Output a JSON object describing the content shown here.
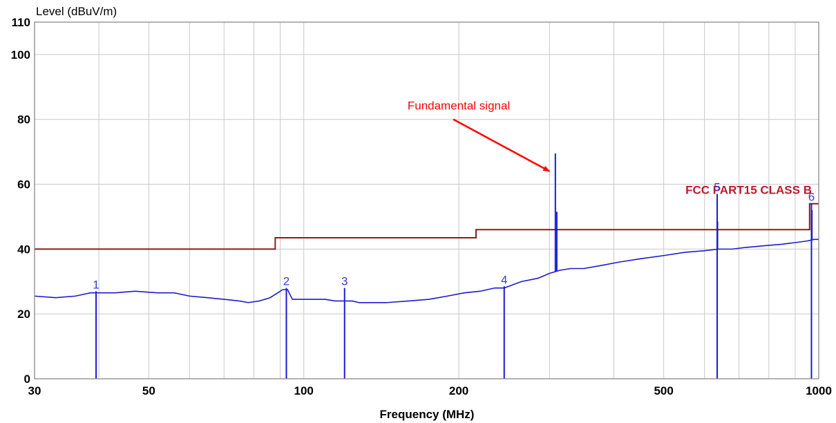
{
  "chart_data": {
    "type": "line",
    "ylabel": "Level (dBuV/m)",
    "xlabel": "Frequency (MHz)",
    "x_scale": "log",
    "xlim": [
      30,
      1000
    ],
    "ylim": [
      0,
      110
    ],
    "x_ticks": [
      30,
      50,
      100,
      200,
      500,
      1000
    ],
    "x_tick_labels": [
      "30",
      "50",
      "100",
      "200",
      "500",
      "1000"
    ],
    "x_minor_gridlines": [
      40,
      60,
      70,
      80,
      90,
      300,
      400,
      600,
      700,
      800,
      900
    ],
    "y_ticks": [
      0,
      20,
      40,
      60,
      80,
      100,
      110
    ],
    "y_tick_labels": [
      "0",
      "20",
      "40",
      "60",
      "80",
      "100",
      "110"
    ],
    "grid": true,
    "colors": {
      "trace": "#1a1ad0",
      "limit": "#8b1a1a",
      "annotation": "#ff0000",
      "marker_label": "#3a3acc"
    },
    "limit_line": {
      "name": "FCC PART15 CLASS B",
      "x": [
        30,
        88,
        88,
        216,
        216,
        960,
        960,
        1000
      ],
      "y": [
        40,
        40,
        43.5,
        43.5,
        46,
        46,
        54,
        54
      ]
    },
    "series": [
      {
        "x": [
          30,
          33,
          36,
          38.5,
          40,
          43,
          47,
          52,
          56,
          60,
          65,
          70,
          75,
          78,
          82,
          86,
          89,
          91,
          93,
          95,
          99,
          105,
          110,
          115,
          120,
          124,
          128,
          135,
          145,
          160,
          175,
          190,
          205,
          220,
          235,
          245,
          250,
          265,
          285,
          300,
          315,
          330,
          350,
          380,
          410,
          450,
          500,
          550,
          600,
          640,
          680,
          720,
          780,
          850,
          900,
          950,
          980,
          1000
        ],
        "y": [
          25.5,
          25,
          25.5,
          26.5,
          26.5,
          26.5,
          27,
          26.5,
          26.5,
          25.5,
          25,
          24.5,
          24,
          23.5,
          24,
          25,
          26.5,
          27.5,
          27.5,
          24.5,
          24.5,
          24.5,
          24.5,
          24,
          24,
          24,
          23.5,
          23.5,
          23.5,
          24,
          24.5,
          25.5,
          26.5,
          27,
          28,
          28,
          28.5,
          30,
          31,
          32.5,
          33.5,
          34,
          34,
          35,
          36,
          37,
          38,
          39,
          39.5,
          40,
          40,
          40.5,
          41,
          41.5,
          42,
          42.5,
          43,
          43
        ]
      }
    ],
    "spikes": [
      {
        "x": 308,
        "y": 69.5
      },
      {
        "x": 310,
        "y": 51.5
      },
      {
        "x": 636,
        "y": 48.5
      },
      {
        "x": 970,
        "y": 52
      }
    ],
    "markers": [
      {
        "label": "1",
        "x": 39.5,
        "y": 27
      },
      {
        "label": "2",
        "x": 92.5,
        "y": 28
      },
      {
        "label": "3",
        "x": 120,
        "y": 28
      },
      {
        "label": "4",
        "x": 245,
        "y": 28.5
      },
      {
        "label": "5",
        "x": 635,
        "y": 57
      },
      {
        "label": "6",
        "x": 968,
        "y": 54
      }
    ],
    "annotation": {
      "text": "Fundamental signal",
      "x": 200,
      "y": 83,
      "arrow_to": {
        "x": 300,
        "y": 64
      }
    }
  }
}
